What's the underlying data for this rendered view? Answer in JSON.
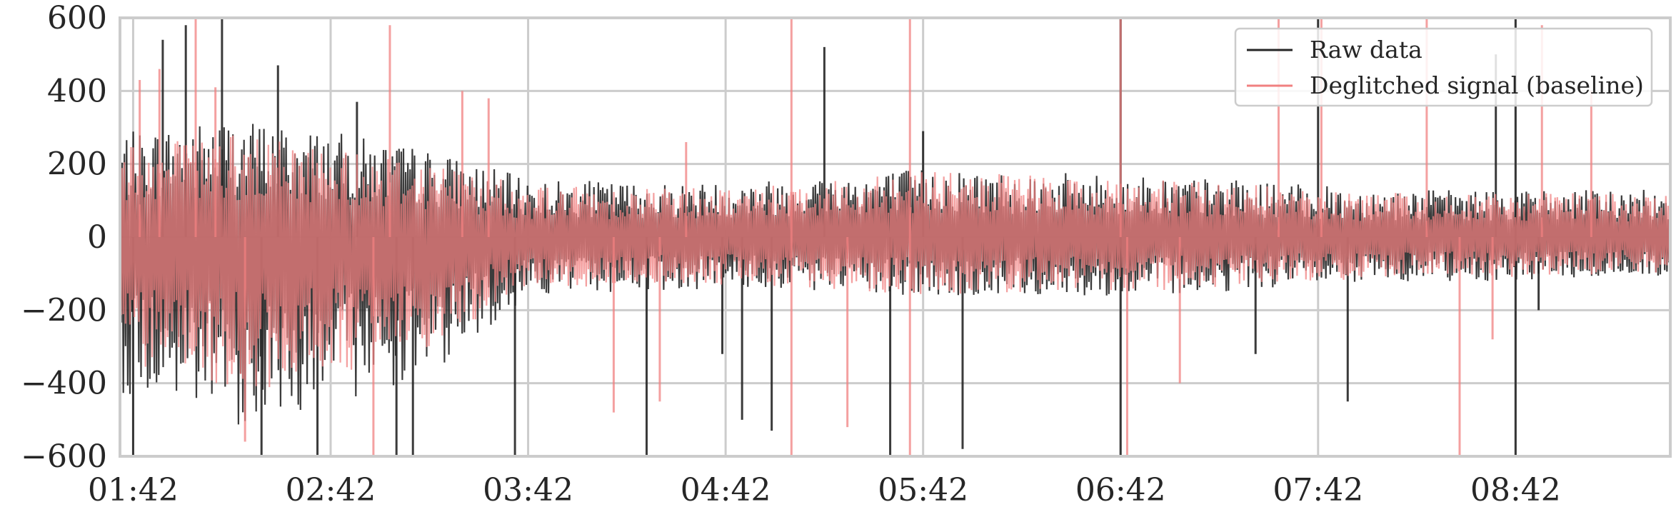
{
  "chart_data": {
    "type": "line",
    "title": "",
    "xlabel": "",
    "ylabel": "",
    "ylim": [
      -600,
      600
    ],
    "yticks": [
      -600,
      -400,
      -200,
      0,
      200,
      400,
      600
    ],
    "ytick_labels": [
      "−600",
      "−400",
      "−200",
      "0",
      "200",
      "400",
      "600"
    ],
    "xlim": [
      "01:38",
      "09:29"
    ],
    "xticks": [
      "01:42",
      "02:42",
      "03:42",
      "04:42",
      "05:42",
      "06:42",
      "07:42",
      "08:42"
    ],
    "grid": true,
    "legend_position": "top-right",
    "series": [
      {
        "name": "Raw data",
        "color": "#262626",
        "envelope": [
          {
            "t": "01:42",
            "lo": -430,
            "hi": 290
          },
          {
            "t": "02:12",
            "lo": -520,
            "hi": 330
          },
          {
            "t": "02:42",
            "lo": -460,
            "hi": 290
          },
          {
            "t": "03:12",
            "lo": -380,
            "hi": 240
          },
          {
            "t": "03:42",
            "lo": -160,
            "hi": 160
          },
          {
            "t": "04:12",
            "lo": -150,
            "hi": 150
          },
          {
            "t": "04:42",
            "lo": -140,
            "hi": 150
          },
          {
            "t": "05:12",
            "lo": -150,
            "hi": 170
          },
          {
            "t": "05:42",
            "lo": -170,
            "hi": 190
          },
          {
            "t": "06:12",
            "lo": -160,
            "hi": 180
          },
          {
            "t": "06:42",
            "lo": -160,
            "hi": 170
          },
          {
            "t": "07:12",
            "lo": -150,
            "hi": 160
          },
          {
            "t": "07:42",
            "lo": -130,
            "hi": 140
          },
          {
            "t": "08:12",
            "lo": -120,
            "hi": 130
          },
          {
            "t": "08:42",
            "lo": -120,
            "hi": 130
          },
          {
            "t": "09:12",
            "lo": -110,
            "hi": 130
          }
        ],
        "spikes": [
          {
            "t": "01:42",
            "v": -600
          },
          {
            "t": "01:51",
            "v": 540
          },
          {
            "t": "01:58",
            "v": 580
          },
          {
            "t": "02:09",
            "v": 600
          },
          {
            "t": "02:21",
            "v": -600
          },
          {
            "t": "02:26",
            "v": 470
          },
          {
            "t": "02:38",
            "v": -600
          },
          {
            "t": "02:50",
            "v": 370
          },
          {
            "t": "03:02",
            "v": -600
          },
          {
            "t": "03:07",
            "v": -600
          },
          {
            "t": "03:38",
            "v": -600
          },
          {
            "t": "04:18",
            "v": -600
          },
          {
            "t": "04:41",
            "v": -320
          },
          {
            "t": "04:47",
            "v": -500
          },
          {
            "t": "04:56",
            "v": -530
          },
          {
            "t": "05:12",
            "v": 520
          },
          {
            "t": "05:32",
            "v": -600
          },
          {
            "t": "05:42",
            "v": 290
          },
          {
            "t": "05:54",
            "v": -580
          },
          {
            "t": "06:42",
            "v": 600
          },
          {
            "t": "06:42",
            "v": -600
          },
          {
            "t": "07:23",
            "v": -320
          },
          {
            "t": "07:42",
            "v": 600
          },
          {
            "t": "07:51",
            "v": -450
          },
          {
            "t": "08:36",
            "v": 500
          },
          {
            "t": "08:42",
            "v": 600
          },
          {
            "t": "08:42",
            "v": -600
          },
          {
            "t": "08:49",
            "v": -200
          }
        ]
      },
      {
        "name": "Deglitched signal (baseline)",
        "color": "#f08080",
        "envelope": [
          {
            "t": "01:42",
            "lo": -350,
            "hi": 250
          },
          {
            "t": "02:12",
            "lo": -430,
            "hi": 280
          },
          {
            "t": "02:42",
            "lo": -380,
            "hi": 250
          },
          {
            "t": "03:12",
            "lo": -300,
            "hi": 210
          },
          {
            "t": "03:42",
            "lo": -140,
            "hi": 140
          },
          {
            "t": "04:12",
            "lo": -140,
            "hi": 140
          },
          {
            "t": "04:42",
            "lo": -130,
            "hi": 140
          },
          {
            "t": "05:12",
            "lo": -140,
            "hi": 160
          },
          {
            "t": "05:42",
            "lo": -160,
            "hi": 180
          },
          {
            "t": "06:12",
            "lo": -150,
            "hi": 170
          },
          {
            "t": "06:42",
            "lo": -150,
            "hi": 160
          },
          {
            "t": "07:12",
            "lo": -140,
            "hi": 150
          },
          {
            "t": "07:42",
            "lo": -120,
            "hi": 130
          },
          {
            "t": "08:12",
            "lo": -110,
            "hi": 120
          },
          {
            "t": "08:42",
            "lo": -110,
            "hi": 120
          },
          {
            "t": "09:12",
            "lo": -100,
            "hi": 120
          }
        ],
        "spikes": [
          {
            "t": "01:44",
            "v": 430
          },
          {
            "t": "01:50",
            "v": 460
          },
          {
            "t": "02:01",
            "v": 600
          },
          {
            "t": "02:07",
            "v": 410
          },
          {
            "t": "02:16",
            "v": -560
          },
          {
            "t": "02:55",
            "v": -600
          },
          {
            "t": "03:00",
            "v": 580
          },
          {
            "t": "03:22",
            "v": 400
          },
          {
            "t": "03:30",
            "v": 380
          },
          {
            "t": "04:08",
            "v": -480
          },
          {
            "t": "04:22",
            "v": -450
          },
          {
            "t": "04:30",
            "v": 260
          },
          {
            "t": "05:02",
            "v": 600
          },
          {
            "t": "05:02",
            "v": -600
          },
          {
            "t": "05:19",
            "v": -520
          },
          {
            "t": "05:38",
            "v": 600
          },
          {
            "t": "05:38",
            "v": -600
          },
          {
            "t": "06:42",
            "v": 600
          },
          {
            "t": "06:44",
            "v": -600
          },
          {
            "t": "07:00",
            "v": -400
          },
          {
            "t": "07:30",
            "v": 600
          },
          {
            "t": "07:43",
            "v": 600
          },
          {
            "t": "08:15",
            "v": 600
          },
          {
            "t": "08:25",
            "v": -600
          },
          {
            "t": "08:35",
            "v": -280
          },
          {
            "t": "08:50",
            "v": 580
          },
          {
            "t": "09:05",
            "v": 400
          }
        ]
      }
    ]
  }
}
